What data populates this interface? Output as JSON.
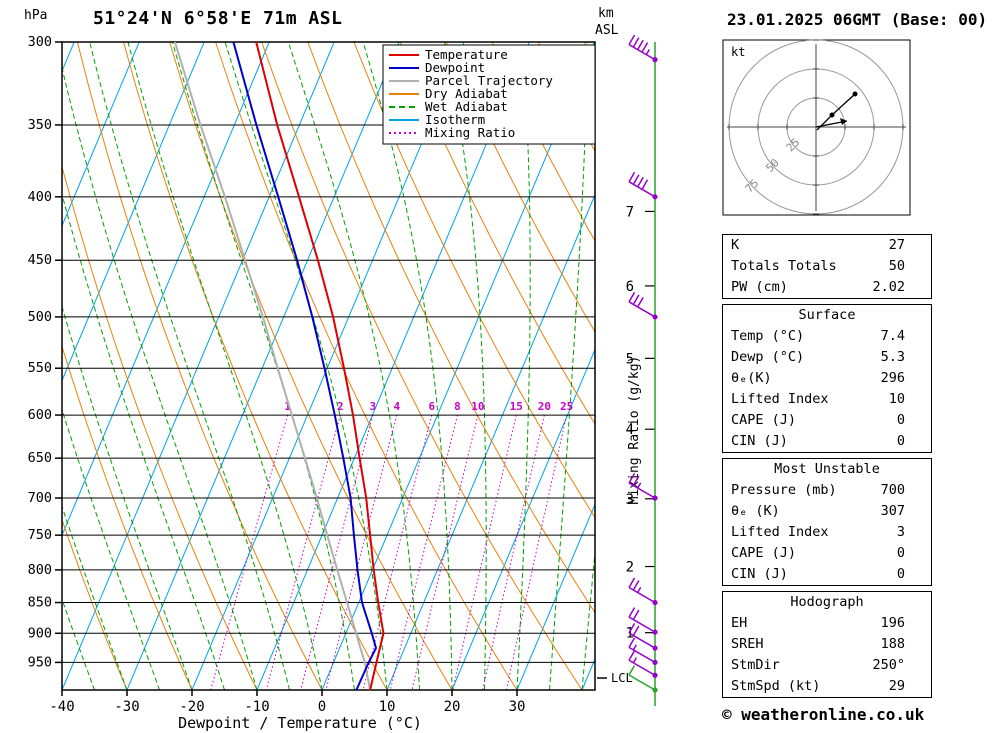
{
  "header": {
    "pressure_unit": "hPa",
    "station_title": "51°24'N 6°58'E 71m ASL",
    "km_label": "km",
    "asl_label": "ASL",
    "date_title": "23.01.2025 06GMT (Base: 00)"
  },
  "chart_data": {
    "type": "skewt-log-p-sounding",
    "xlabel": "Dewpoint / Temperature (°C)",
    "x_ticks": [
      -40,
      -30,
      -20,
      -10,
      0,
      10,
      20,
      30
    ],
    "temp_range": [
      -40,
      42
    ],
    "pressure_range": [
      300,
      1000
    ],
    "pressure_ticks": [
      300,
      350,
      400,
      450,
      500,
      550,
      600,
      650,
      700,
      750,
      800,
      850,
      900,
      950
    ],
    "km_ticks": [
      {
        "label": "7",
        "p": 411
      },
      {
        "label": "6",
        "p": 472
      },
      {
        "label": "5",
        "p": 540
      },
      {
        "label": "4",
        "p": 616
      },
      {
        "label": "3",
        "p": 701
      },
      {
        "label": "2",
        "p": 795
      },
      {
        "label": "1",
        "p": 899
      }
    ],
    "lcl": {
      "label": "LCL",
      "p": 978
    },
    "mixing_ratio_axis_label": "Mixing Ratio (g/kg)",
    "mixing_ratio_values": [
      1,
      2,
      3,
      4,
      6,
      8,
      10,
      15,
      20,
      25
    ],
    "legend": [
      {
        "label": "Temperature",
        "color": "#dc0000",
        "style": "solid"
      },
      {
        "label": "Dewpoint",
        "color": "#0000c8",
        "style": "solid"
      },
      {
        "label": "Parcel Trajectory",
        "color": "#b0b0b0",
        "style": "solid"
      },
      {
        "label": "Dry Adiabat",
        "color": "#e8820e",
        "style": "solid"
      },
      {
        "label": "Wet Adiabat",
        "color": "#00a000",
        "style": "dashed"
      },
      {
        "label": "Isotherm",
        "color": "#00a2e8",
        "style": "solid"
      },
      {
        "label": "Mixing Ratio",
        "color": "#c800c8",
        "style": "dotted"
      }
    ],
    "sounding": {
      "pressure": [
        1000,
        950,
        925,
        900,
        850,
        800,
        750,
        700,
        650,
        600,
        550,
        500,
        450,
        400,
        350,
        300
      ],
      "temperature": [
        7.4,
        6.6,
        6.2,
        5.8,
        3.0,
        0.2,
        -2.6,
        -5.6,
        -9.2,
        -13.0,
        -17.4,
        -22.4,
        -28.4,
        -35.4,
        -43.4,
        -52.0
      ],
      "dewpoint": [
        5.3,
        5.4,
        5.6,
        4.0,
        0.5,
        -2.3,
        -5.1,
        -8.0,
        -11.7,
        -15.8,
        -20.4,
        -25.6,
        -31.6,
        -38.6,
        -46.6,
        -55.5
      ],
      "parcel": [
        7.4,
        4.8,
        3.2,
        1.6,
        -1.8,
        -5.4,
        -9.2,
        -13.2,
        -17.6,
        -22.4,
        -27.6,
        -33.2,
        -39.6,
        -46.8,
        -55.2,
        -64.5
      ]
    },
    "wind_barbs": {
      "line_color": "#2da02d",
      "barb_color": "#9600c8",
      "levels": [
        {
          "p": 310,
          "speed": 45
        },
        {
          "p": 400,
          "speed": 40
        },
        {
          "p": 500,
          "speed": 30
        },
        {
          "p": 700,
          "speed": 25
        },
        {
          "p": 850,
          "speed": 25
        },
        {
          "p": 898,
          "speed": 20
        },
        {
          "p": 925,
          "speed": 20
        },
        {
          "p": 950,
          "speed": 15
        },
        {
          "p": 973,
          "speed": 15
        }
      ],
      "surface_level": {
        "p": 1000,
        "speed": 10,
        "color": "#2da02d"
      }
    },
    "hodograph": {
      "unit_label": "kt",
      "rings": [
        25,
        50,
        75
      ],
      "ring_labels": [
        "25",
        "50",
        "75"
      ],
      "trace": [
        [
          1,
          3
        ],
        [
          16,
          -12
        ],
        [
          39,
          -33
        ]
      ],
      "dots": [
        [
          39,
          -33
        ],
        [
          16,
          -12
        ]
      ],
      "storm_vector": [
        31,
        -6
      ]
    }
  },
  "table": {
    "indices": {
      "rows": [
        {
          "label": "K",
          "value": "27"
        },
        {
          "label": "Totals Totals",
          "value": "50"
        },
        {
          "label": "PW (cm)",
          "value": "2.02"
        }
      ]
    },
    "surface": {
      "title": "Surface",
      "rows": [
        {
          "label": "Temp (°C)",
          "value": "7.4"
        },
        {
          "label": "Dewp (°C)",
          "value": "5.3"
        },
        {
          "label": "θₑ(K)",
          "value": "296"
        },
        {
          "label": "Lifted Index",
          "value": "10"
        },
        {
          "label": "CAPE (J)",
          "value": "0"
        },
        {
          "label": "CIN (J)",
          "value": "0"
        }
      ]
    },
    "most_unstable": {
      "title": "Most Unstable",
      "rows": [
        {
          "label": "Pressure (mb)",
          "value": "700"
        },
        {
          "label": "θₑ (K)",
          "value": "307"
        },
        {
          "label": "Lifted Index",
          "value": "3"
        },
        {
          "label": "CAPE (J)",
          "value": "0"
        },
        {
          "label": "CIN (J)",
          "value": "0"
        }
      ]
    },
    "hodograph_section": {
      "title": "Hodograph",
      "rows": [
        {
          "label": "EH",
          "value": "196"
        },
        {
          "label": "SREH",
          "value": "188"
        },
        {
          "label": "StmDir",
          "value": "250°"
        },
        {
          "label": "StmSpd (kt)",
          "value": "29"
        }
      ]
    }
  },
  "footer": {
    "copyright": "© weatheronline.co.uk"
  }
}
